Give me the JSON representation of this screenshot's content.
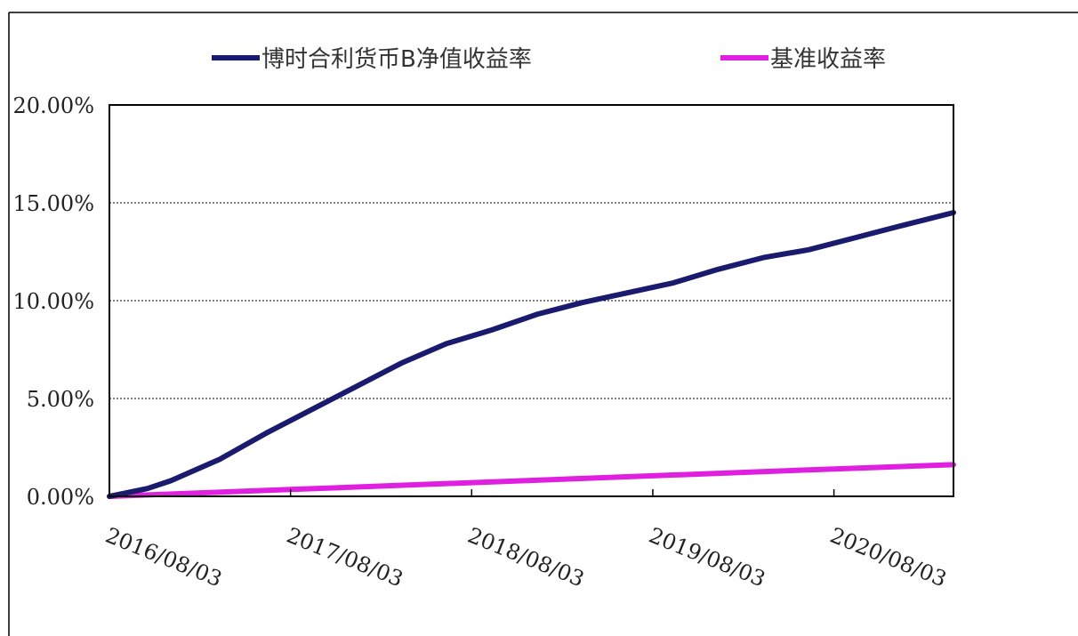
{
  "chart_data": {
    "type": "line",
    "title": "",
    "xlabel": "",
    "ylabel": "",
    "x_tick_labels": [
      "2016/08/03",
      "2017/08/03",
      "2018/08/03",
      "2019/08/03",
      "2020/08/03"
    ],
    "y_tick_labels": [
      "0.00%",
      "5.00%",
      "10.00%",
      "15.00%",
      "20.00%"
    ],
    "ylim": [
      0,
      20
    ],
    "xlim": [
      2016.59,
      2021.25
    ],
    "grid": "horizontal dotted",
    "legend_position": "top",
    "series": [
      {
        "name": "博时合利货币B净值收益率",
        "color": "#1a1a6e",
        "x": [
          2016.59,
          2016.8,
          2016.93,
          2017.2,
          2017.45,
          2017.7,
          2017.95,
          2018.2,
          2018.45,
          2018.7,
          2018.95,
          2019.2,
          2019.45,
          2019.7,
          2019.95,
          2020.2,
          2020.45,
          2020.7,
          2020.95,
          2021.25
        ],
        "y": [
          0.0,
          0.4,
          0.8,
          1.9,
          3.2,
          4.4,
          5.6,
          6.8,
          7.8,
          8.5,
          9.3,
          9.9,
          10.4,
          10.9,
          11.6,
          12.2,
          12.6,
          13.2,
          13.8,
          14.5
        ]
      },
      {
        "name": "基准收益率",
        "color": "#e020e0",
        "x": [
          2016.59,
          2017.59,
          2018.59,
          2019.59,
          2020.59,
          2021.25
        ],
        "y": [
          0.0,
          0.35,
          0.7,
          1.05,
          1.4,
          1.62
        ]
      }
    ]
  }
}
